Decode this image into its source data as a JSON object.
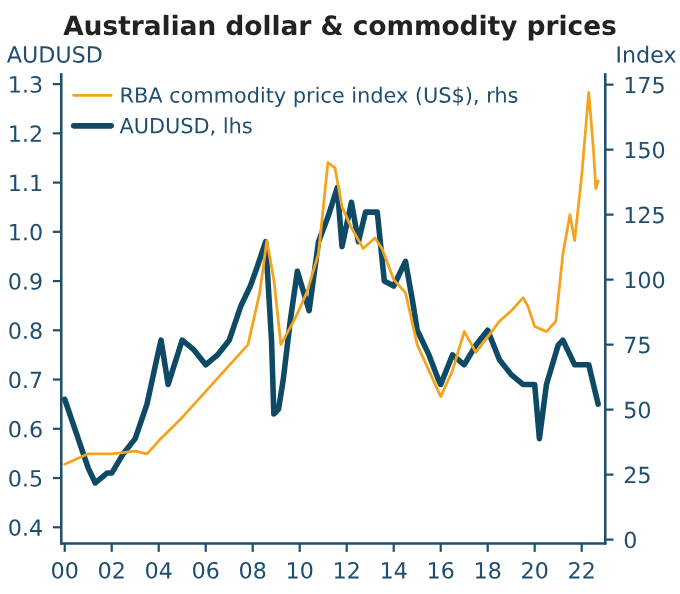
{
  "chart_data": {
    "type": "line",
    "title": "Australian dollar & commodity prices",
    "ylabel": "AUDUSD",
    "y2label": "Index",
    "series": [
      {
        "name": "RBA commodity price index (US$), rhs",
        "color": "#f5a31c",
        "axis": "y2",
        "x": [
          0,
          1,
          2,
          3,
          3.5,
          4,
          5,
          6,
          7,
          7.8,
          8.3,
          8.6,
          8.9,
          9.2,
          9.8,
          10.3,
          10.8,
          11.2,
          11.5,
          11.8,
          12.2,
          12.7,
          13.2,
          13.5,
          14,
          14.5,
          15,
          15.5,
          16,
          16.5,
          17,
          17.5,
          18,
          18.5,
          19,
          19.5,
          19.7,
          20,
          20.5,
          20.9,
          21.2,
          21.5,
          21.7,
          22,
          22.3,
          22.5,
          22.6,
          22.7
        ],
        "values": [
          29,
          33,
          33,
          34,
          33,
          38,
          47,
          57,
          67,
          75,
          95,
          115,
          100,
          75,
          85,
          95,
          110,
          145,
          143,
          128,
          120,
          112,
          116,
          112,
          100,
          95,
          75,
          65,
          55,
          65,
          80,
          72,
          78,
          84,
          88,
          93,
          90,
          82,
          80,
          84,
          110,
          125,
          115,
          140,
          172,
          150,
          135,
          138
        ]
      },
      {
        "name": "AUDUSD, lhs",
        "color": "#0e4a66",
        "x": [
          0,
          0.5,
          1,
          1.3,
          1.8,
          2,
          2.5,
          3,
          3.5,
          4,
          4.1,
          4.4,
          4.8,
          5,
          5.5,
          6,
          6.5,
          7,
          7.5,
          7.9,
          8.2,
          8.55,
          8.8,
          8.9,
          9.1,
          9.3,
          9.6,
          9.9,
          10.4,
          10.8,
          11.2,
          11.6,
          11.8,
          12.2,
          12.5,
          12.8,
          13.3,
          13.6,
          14,
          14.5,
          14.8,
          15,
          15.5,
          15.9,
          16,
          16.5,
          17,
          17.5,
          18,
          18.5,
          19,
          19.5,
          20,
          20.2,
          20.5,
          21,
          21.2,
          21.7,
          22.3,
          22.6,
          22.7
        ],
        "values": [
          0.66,
          0.59,
          0.52,
          0.49,
          0.51,
          0.51,
          0.55,
          0.58,
          0.65,
          0.76,
          0.78,
          0.69,
          0.75,
          0.78,
          0.76,
          0.73,
          0.75,
          0.78,
          0.85,
          0.89,
          0.93,
          0.98,
          0.78,
          0.63,
          0.64,
          0.7,
          0.82,
          0.92,
          0.84,
          0.98,
          1.03,
          1.09,
          0.97,
          1.06,
          0.98,
          1.04,
          1.04,
          0.9,
          0.89,
          0.94,
          0.86,
          0.8,
          0.75,
          0.7,
          0.69,
          0.75,
          0.73,
          0.77,
          0.8,
          0.74,
          0.71,
          0.69,
          0.69,
          0.58,
          0.69,
          0.77,
          0.78,
          0.73,
          0.73,
          0.67,
          0.65
        ]
      }
    ],
    "xlim": [
      -0.15,
      23.0
    ],
    "xticks": [
      {
        "value": 0,
        "label": "00"
      },
      {
        "value": 2,
        "label": "02"
      },
      {
        "value": 4,
        "label": "04"
      },
      {
        "value": 6,
        "label": "06"
      },
      {
        "value": 8,
        "label": "08"
      },
      {
        "value": 10,
        "label": "10"
      },
      {
        "value": 12,
        "label": "12"
      },
      {
        "value": 14,
        "label": "14"
      },
      {
        "value": 16,
        "label": "16"
      },
      {
        "value": 18,
        "label": "18"
      },
      {
        "value": 20,
        "label": "20"
      },
      {
        "value": 22,
        "label": "22"
      }
    ],
    "ylim": [
      0.367,
      1.32
    ],
    "yticks": [
      0.4,
      0.5,
      0.6,
      0.7,
      0.8,
      0.9,
      {
        "value": 1.0,
        "label": "1.0"
      },
      1.1,
      1.2,
      1.3
    ],
    "y2lim": [
      -1.5,
      179
    ],
    "y2ticks": [
      0,
      25,
      50,
      75,
      100,
      125,
      150,
      175
    ],
    "legend": "top left",
    "grid": false,
    "marker": "none",
    "line_style": "solid"
  }
}
